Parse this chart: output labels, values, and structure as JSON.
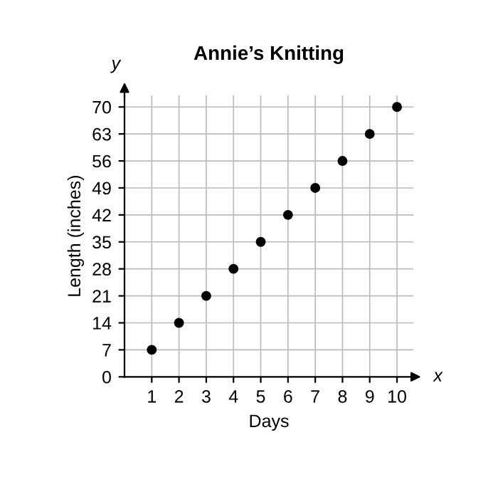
{
  "chart_data": {
    "type": "scatter",
    "title": "Annie’s Knitting",
    "xlabel": "Days",
    "ylabel": "Length (inches)",
    "annotations": [
      "x",
      "y"
    ],
    "x": [
      1,
      2,
      3,
      4,
      5,
      6,
      7,
      8,
      9,
      10
    ],
    "values": [
      7,
      14,
      21,
      28,
      35,
      42,
      49,
      56,
      63,
      70
    ],
    "color": "#000000",
    "marker": "circle",
    "xlim": [
      0,
      10.6
    ],
    "ylim": [
      0,
      73
    ],
    "xticks": [
      1,
      2,
      3,
      4,
      5,
      6,
      7,
      8,
      9,
      10
    ],
    "yticks": [
      0,
      7,
      14,
      21,
      28,
      35,
      42,
      49,
      56,
      63,
      70
    ],
    "grid": true
  }
}
